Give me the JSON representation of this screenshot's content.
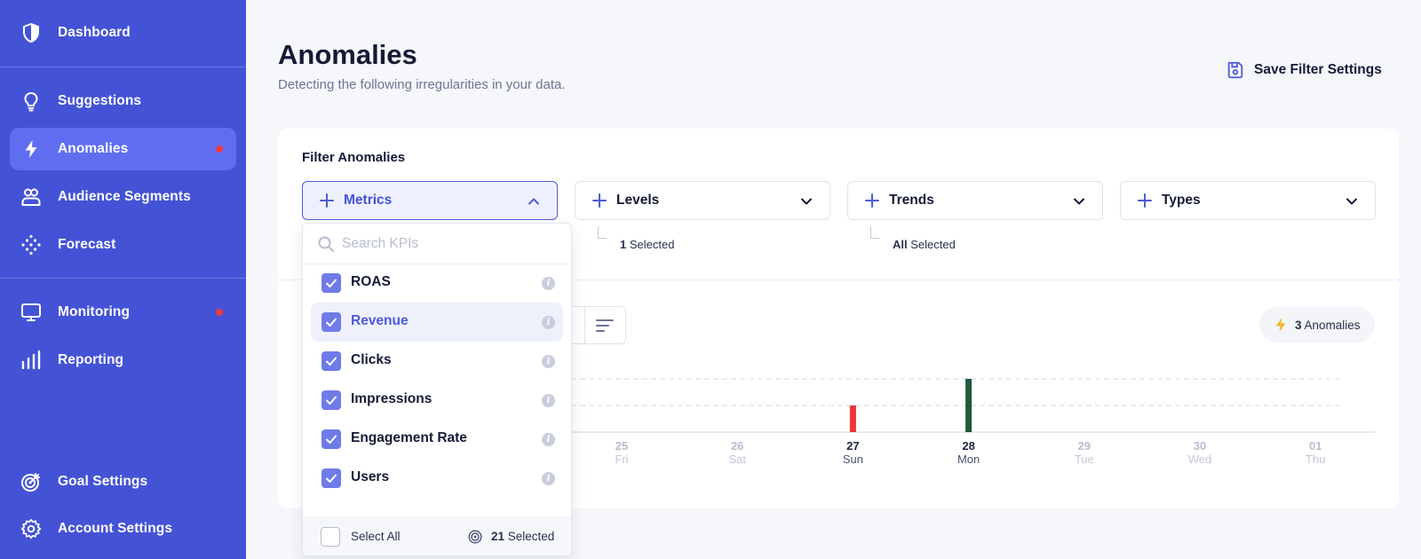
{
  "sidebar": {
    "items": [
      {
        "label": "Dashboard",
        "icon": "shield-icon"
      },
      {
        "label": "Suggestions",
        "icon": "lightbulb-icon"
      },
      {
        "label": "Anomalies",
        "icon": "bolt-icon",
        "active": true,
        "alert": true
      },
      {
        "label": "Audience Segments",
        "icon": "users-icon"
      },
      {
        "label": "Forecast",
        "icon": "dots-grid-icon"
      },
      {
        "label": "Monitoring",
        "icon": "monitor-icon",
        "alert": true
      },
      {
        "label": "Reporting",
        "icon": "bar-chart-icon"
      },
      {
        "label": "Goal Settings",
        "icon": "target-icon"
      },
      {
        "label": "Account Settings",
        "icon": "gear-icon"
      }
    ]
  },
  "header": {
    "title": "Anomalies",
    "subtitle": "Detecting the following irregularities in your data.",
    "save_label": "Save Filter Settings"
  },
  "filters": {
    "title": "Filter Anomalies",
    "dropdowns": [
      {
        "label": "Metrics",
        "open": true
      },
      {
        "label": "Levels"
      },
      {
        "label": "Trends"
      },
      {
        "label": "Types"
      }
    ],
    "levels_selected": {
      "count": "1",
      "suffix": " Selected"
    },
    "trends_selected": {
      "count": "All",
      "suffix": " Selected"
    }
  },
  "metrics_panel": {
    "search_placeholder": "Search KPIs",
    "items": [
      {
        "label": "ROAS",
        "checked": true
      },
      {
        "label": "Revenue",
        "checked": true,
        "highlighted": true
      },
      {
        "label": "Clicks",
        "checked": true
      },
      {
        "label": "Impressions",
        "checked": true
      },
      {
        "label": "Engagement Rate",
        "checked": true
      },
      {
        "label": "Users",
        "checked": true
      }
    ],
    "info_glyph": "i",
    "select_all_label": "Select All",
    "selected_count": "21",
    "selected_suffix": " Selected"
  },
  "anomaly_badge": {
    "count": "3",
    "label": " Anomalies"
  },
  "timeline": {
    "days": [
      {
        "num": "25",
        "name": "Fri",
        "active": false
      },
      {
        "num": "26",
        "name": "Sat",
        "active": false
      },
      {
        "num": "27",
        "name": "Sun",
        "active": true
      },
      {
        "num": "28",
        "name": "Mon",
        "active": true
      },
      {
        "num": "29",
        "name": "Tue",
        "active": false
      },
      {
        "num": "30",
        "name": "Wed",
        "active": false
      },
      {
        "num": "01",
        "name": "Thu",
        "active": false
      }
    ],
    "markers": [
      {
        "day": "27",
        "level": 0.5,
        "color": "#e53935"
      },
      {
        "day": "28",
        "level": 1.0,
        "color": "#1e5a3c"
      }
    ]
  },
  "colors": {
    "sidebar_bg": "#4453d6",
    "accent": "#4e5bd9",
    "alert_dot": "#ef3b3b",
    "bolt": "#f2b632"
  }
}
